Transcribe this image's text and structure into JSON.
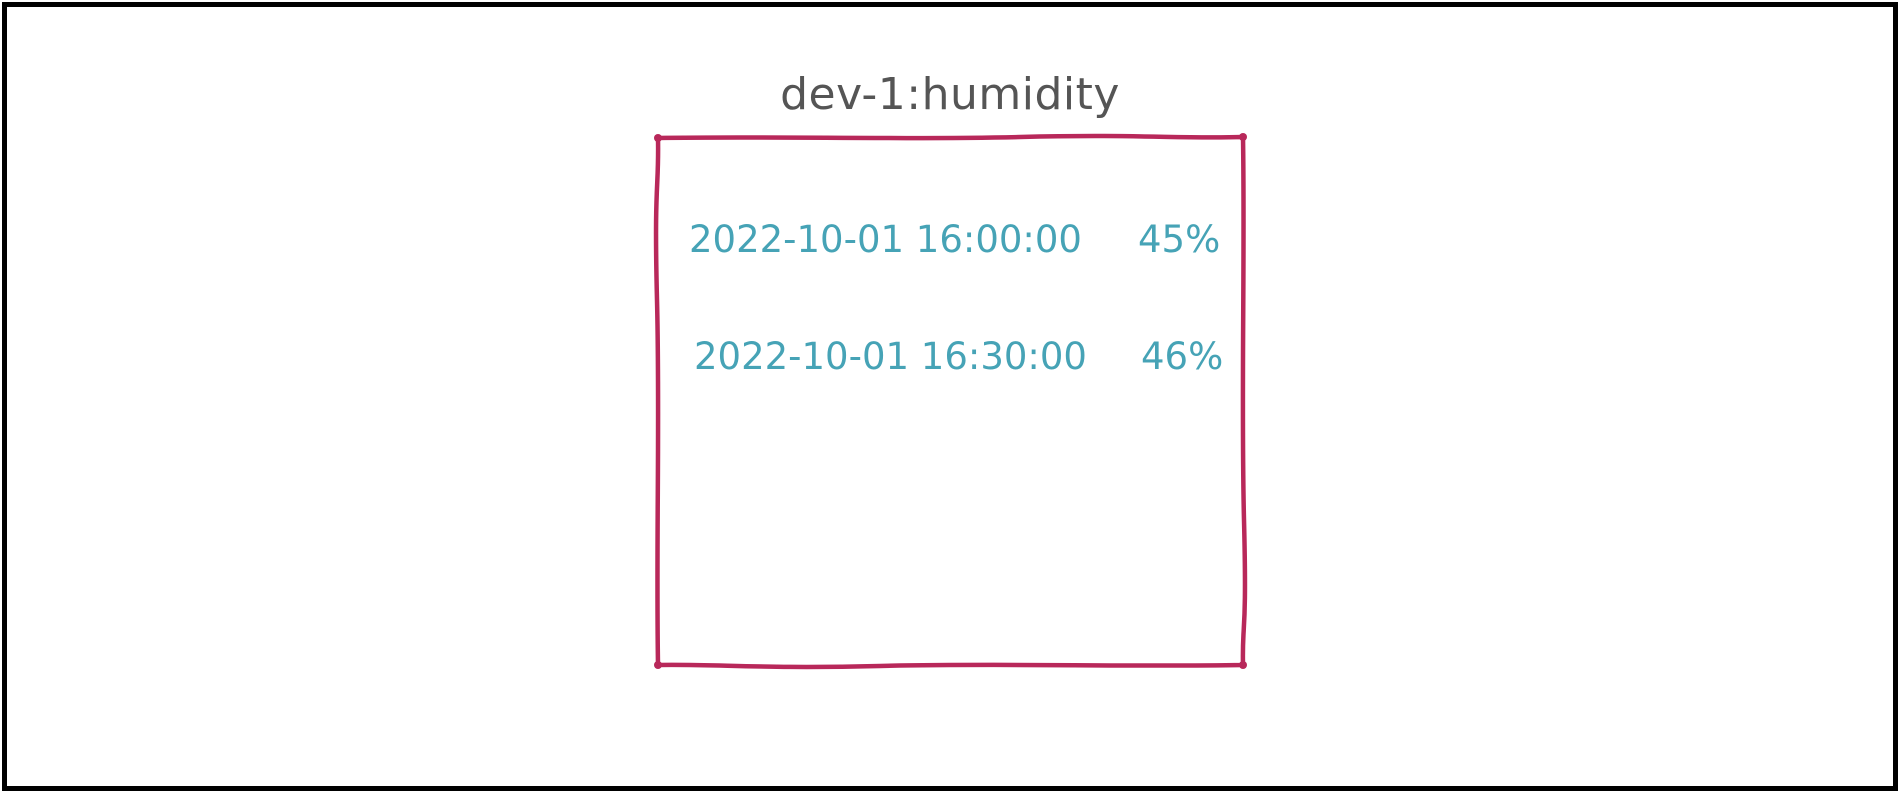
{
  "diagram": {
    "title": "dev-1:humidity",
    "entries": [
      {
        "timestamp": "2022-10-01 16:00:00",
        "value": "45%"
      },
      {
        "timestamp": "2022-10-01 16:30:00",
        "value": "46%"
      }
    ]
  },
  "colors": {
    "frame": "#000000",
    "box_stroke": "#b8285a",
    "title": "#555555",
    "entry_text": "#46a3b6"
  }
}
